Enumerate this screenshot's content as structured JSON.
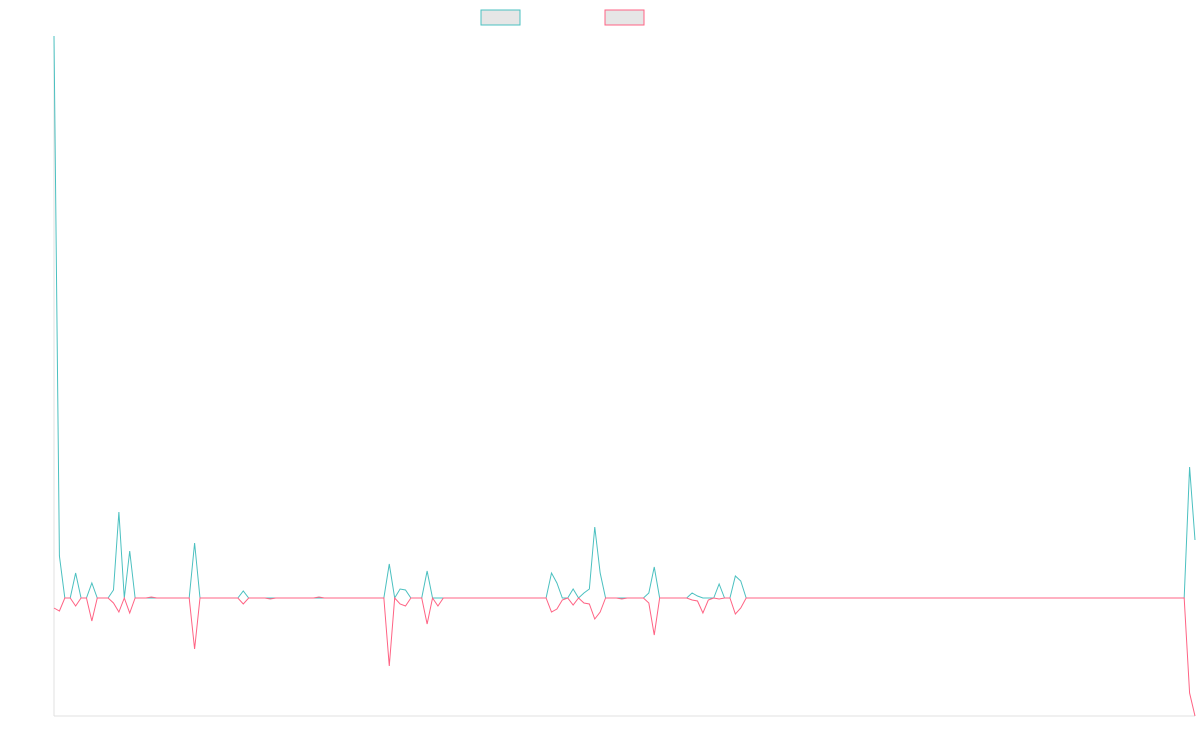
{
  "chart_data": {
    "type": "line",
    "categories": [
      null,
      null,
      null,
      null,
      null,
      null,
      null,
      null,
      null,
      null,
      null,
      null,
      null,
      null,
      null,
      null,
      null,
      null,
      null,
      null,
      null,
      null,
      null,
      null,
      null,
      null,
      null,
      null,
      null,
      null,
      null,
      null,
      null,
      null,
      null,
      null,
      null,
      null,
      null,
      null,
      null,
      null,
      null,
      null,
      null,
      null,
      null,
      null,
      null,
      null,
      null,
      null,
      null,
      null,
      null,
      null,
      null,
      null,
      null,
      null,
      null,
      null,
      null,
      null,
      null,
      null,
      null,
      null,
      null,
      null,
      null,
      null,
      null,
      null,
      null,
      null,
      null,
      null,
      null,
      null,
      null,
      null,
      null,
      null,
      null,
      null,
      null,
      null,
      null,
      null,
      null,
      null,
      null,
      null,
      null,
      null,
      null,
      null,
      null,
      null,
      null,
      null,
      null,
      null,
      null,
      null,
      null,
      null,
      null,
      null,
      null,
      null,
      null,
      null,
      null,
      null,
      null,
      null,
      null,
      null,
      null,
      null,
      null,
      null,
      null,
      null,
      null,
      null,
      null,
      null,
      null,
      null,
      null,
      null,
      null,
      null,
      null,
      null,
      null,
      null,
      null,
      null,
      null,
      null,
      null,
      null,
      null,
      null,
      null,
      null,
      null,
      null,
      null,
      null,
      null,
      null,
      null,
      null,
      null,
      null,
      null,
      null,
      null,
      null,
      null,
      null,
      null,
      null,
      null,
      null,
      null,
      null,
      null,
      null,
      null,
      null,
      null,
      null,
      null,
      null,
      null,
      null,
      null,
      null,
      null,
      null,
      null,
      null,
      null,
      null,
      null,
      null,
      null,
      null,
      null,
      null,
      null,
      null,
      null,
      null,
      null,
      null,
      null,
      null,
      null,
      null,
      null,
      null,
      null,
      null,
      null,
      null
    ],
    "series": [
      {
        "color": "#4bc0c0",
        "values": [
          562,
          42,
          0,
          0,
          25,
          0,
          0,
          15,
          0,
          0,
          0,
          8,
          86,
          0,
          47,
          0,
          0,
          0,
          0,
          0,
          0,
          0,
          0,
          0,
          0,
          0,
          55,
          0,
          0,
          0,
          0,
          0,
          0,
          0,
          0,
          7,
          0,
          0,
          0,
          0,
          0,
          0,
          0,
          0,
          0,
          0,
          0,
          0,
          0,
          0,
          0,
          0,
          0,
          0,
          0,
          0,
          0,
          0,
          0,
          0,
          0,
          0,
          34,
          0,
          9,
          8,
          0,
          0,
          0,
          27,
          0,
          0,
          0,
          0,
          0,
          0,
          0,
          0,
          0,
          0,
          0,
          0,
          0,
          0,
          0,
          0,
          0,
          0,
          0,
          0,
          0,
          0,
          25,
          15,
          0,
          0,
          9,
          0,
          5,
          9,
          71,
          25,
          0,
          0,
          0,
          0,
          0,
          0,
          0,
          0,
          5,
          31,
          0,
          0,
          0,
          0,
          0,
          0,
          5,
          2,
          0,
          0,
          0,
          14,
          0,
          0,
          22,
          17,
          0,
          0,
          0,
          0,
          0,
          0,
          0,
          0,
          0,
          0,
          0,
          0,
          0,
          0,
          0,
          0,
          0,
          0,
          0,
          0,
          0,
          0,
          0,
          0,
          0,
          0,
          0,
          0,
          0,
          0,
          0,
          0,
          0,
          0,
          0,
          0,
          0,
          0,
          0,
          0,
          0,
          0,
          0,
          0,
          0,
          0,
          0,
          0,
          0,
          0,
          0,
          0,
          0,
          0,
          0,
          0,
          0,
          0,
          0,
          0,
          0,
          0,
          0,
          0,
          0,
          0,
          0,
          0,
          0,
          0,
          0,
          0,
          0,
          0,
          0,
          0,
          0,
          0,
          0,
          0,
          0,
          0,
          131,
          58
        ]
      },
      {
        "color": "#ff6384",
        "values": [
          -10,
          -13,
          0,
          0,
          -8,
          0,
          0,
          -23,
          0,
          0,
          0,
          -5,
          -14,
          0,
          -15,
          0,
          0,
          0,
          1,
          0,
          0,
          0,
          0,
          0,
          0,
          0,
          -51,
          0,
          0,
          0,
          0,
          0,
          0,
          0,
          0,
          -6,
          0,
          0,
          0,
          0,
          -1,
          0,
          0,
          0,
          0,
          0,
          0,
          0,
          0,
          1,
          0,
          0,
          0,
          0,
          0,
          0,
          0,
          0,
          0,
          0,
          0,
          0,
          -68,
          0,
          -6,
          -8,
          0,
          0,
          0,
          -26,
          0,
          -8,
          0,
          0,
          0,
          0,
          0,
          0,
          0,
          0,
          0,
          0,
          0,
          0,
          0,
          0,
          0,
          0,
          0,
          0,
          0,
          0,
          -14,
          -11,
          -2,
          0,
          -7,
          0,
          -5,
          -6,
          -21,
          -14,
          0,
          0,
          0,
          -1,
          0,
          0,
          0,
          0,
          -5,
          -37,
          0,
          0,
          0,
          0,
          0,
          0,
          -2,
          -3,
          -15,
          -2,
          0,
          -1,
          0,
          0,
          -16,
          -10,
          0,
          0,
          0,
          0,
          0,
          0,
          0,
          0,
          0,
          0,
          0,
          0,
          0,
          0,
          0,
          0,
          0,
          0,
          0,
          0,
          0,
          0,
          0,
          0,
          0,
          0,
          0,
          0,
          0,
          0,
          0,
          0,
          0,
          0,
          0,
          0,
          0,
          0,
          0,
          0,
          0,
          0,
          0,
          0,
          0,
          0,
          0,
          0,
          0,
          0,
          0,
          0,
          0,
          0,
          0,
          0,
          0,
          0,
          0,
          0,
          0,
          0,
          0,
          0,
          0,
          0,
          0,
          0,
          0,
          0,
          0,
          0,
          0,
          0,
          0,
          0,
          0,
          0,
          0,
          0,
          0,
          0,
          -95,
          -118
        ]
      }
    ],
    "ylim": [
      -118,
      562
    ]
  }
}
